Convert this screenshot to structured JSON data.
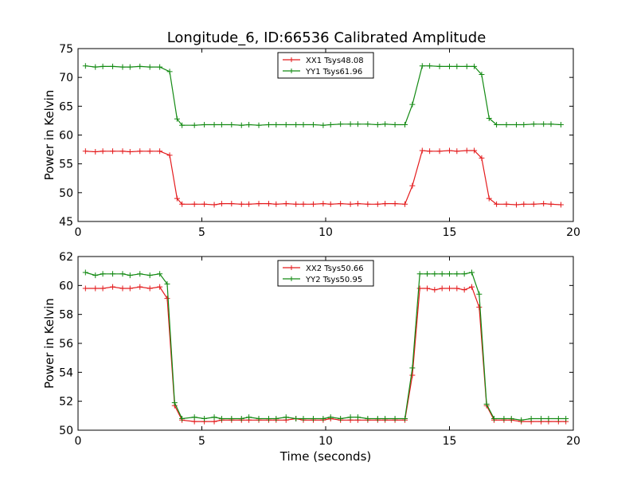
{
  "title": "Longitude_6, ID:66536 Calibrated Amplitude",
  "colors": {
    "red": "#e41a1c",
    "green": "#138a13"
  },
  "chart_data": [
    {
      "type": "line",
      "ylabel": "Power in Kelvin",
      "xlabel": "",
      "xlim": [
        0,
        20
      ],
      "ylim": [
        45,
        75
      ],
      "xticks": [
        0,
        5,
        10,
        15,
        20
      ],
      "yticks": [
        45,
        50,
        55,
        60,
        65,
        70,
        75
      ],
      "grid": false,
      "legend_position": "top-center",
      "x": [
        0.3,
        0.7,
        1.0,
        1.4,
        1.8,
        2.1,
        2.5,
        2.9,
        3.3,
        3.7,
        4.0,
        4.2,
        4.7,
        5.1,
        5.5,
        5.8,
        6.2,
        6.6,
        6.9,
        7.3,
        7.7,
        8.0,
        8.4,
        8.8,
        9.1,
        9.5,
        9.9,
        10.2,
        10.6,
        11.0,
        11.3,
        11.7,
        12.1,
        12.4,
        12.8,
        13.2,
        13.5,
        13.9,
        14.2,
        14.6,
        15.0,
        15.3,
        15.7,
        16.0,
        16.3,
        16.6,
        16.9,
        17.3,
        17.7,
        18.0,
        18.4,
        18.8,
        19.1,
        19.5
      ],
      "series": [
        {
          "name": "XX1 Tsys48.08",
          "color": "#e41a1c",
          "values": [
            57.2,
            57.1,
            57.2,
            57.2,
            57.2,
            57.1,
            57.2,
            57.2,
            57.2,
            56.5,
            49.0,
            48.0,
            48.0,
            48.0,
            47.9,
            48.1,
            48.1,
            48.0,
            48.0,
            48.1,
            48.1,
            48.0,
            48.1,
            48.0,
            48.0,
            48.0,
            48.1,
            48.0,
            48.1,
            48.0,
            48.1,
            48.0,
            48.0,
            48.1,
            48.1,
            48.0,
            51.2,
            57.3,
            57.2,
            57.2,
            57.3,
            57.2,
            57.3,
            57.3,
            56.0,
            49.0,
            48.0,
            48.0,
            47.9,
            48.0,
            48.0,
            48.1,
            48.0,
            47.9
          ]
        },
        {
          "name": "YY1 Tsys61.96",
          "color": "#138a13",
          "values": [
            72.0,
            71.8,
            71.9,
            71.9,
            71.8,
            71.8,
            71.9,
            71.8,
            71.8,
            71.0,
            62.8,
            61.7,
            61.7,
            61.8,
            61.8,
            61.8,
            61.8,
            61.7,
            61.8,
            61.7,
            61.8,
            61.8,
            61.8,
            61.8,
            61.8,
            61.8,
            61.7,
            61.8,
            61.9,
            61.9,
            61.9,
            61.9,
            61.8,
            61.9,
            61.8,
            61.8,
            65.3,
            72.0,
            72.0,
            71.9,
            71.9,
            71.9,
            71.9,
            71.9,
            70.5,
            62.9,
            61.8,
            61.8,
            61.8,
            61.8,
            61.9,
            61.9,
            61.9,
            61.8
          ]
        }
      ]
    },
    {
      "type": "line",
      "ylabel": "Power in Kelvin",
      "xlabel": "Time (seconds)",
      "xlim": [
        0,
        20
      ],
      "ylim": [
        50,
        62
      ],
      "xticks": [
        0,
        5,
        10,
        15,
        20
      ],
      "yticks": [
        50,
        52,
        54,
        56,
        58,
        60,
        62
      ],
      "grid": false,
      "legend_position": "top-center",
      "x": [
        0.3,
        0.7,
        1.0,
        1.4,
        1.8,
        2.1,
        2.5,
        2.9,
        3.3,
        3.6,
        3.9,
        4.2,
        4.7,
        5.1,
        5.5,
        5.8,
        6.2,
        6.6,
        6.9,
        7.3,
        7.7,
        8.0,
        8.4,
        8.8,
        9.1,
        9.5,
        9.9,
        10.2,
        10.6,
        11.0,
        11.3,
        11.7,
        12.1,
        12.4,
        12.8,
        13.2,
        13.5,
        13.8,
        14.1,
        14.4,
        14.7,
        15.0,
        15.3,
        15.6,
        15.9,
        16.2,
        16.5,
        16.8,
        17.2,
        17.5,
        17.9,
        18.3,
        18.7,
        19.0,
        19.4,
        19.7
      ],
      "series": [
        {
          "name": "XX2 Tsys50.66",
          "color": "#e41a1c",
          "values": [
            59.8,
            59.8,
            59.8,
            59.9,
            59.8,
            59.8,
            59.9,
            59.8,
            59.9,
            59.1,
            51.7,
            50.7,
            50.6,
            50.6,
            50.6,
            50.7,
            50.7,
            50.7,
            50.7,
            50.7,
            50.7,
            50.7,
            50.7,
            50.8,
            50.7,
            50.7,
            50.7,
            50.8,
            50.7,
            50.7,
            50.7,
            50.7,
            50.7,
            50.7,
            50.7,
            50.7,
            53.8,
            59.8,
            59.8,
            59.7,
            59.8,
            59.8,
            59.8,
            59.7,
            59.9,
            58.5,
            51.7,
            50.7,
            50.7,
            50.7,
            50.6,
            50.6,
            50.6,
            50.6,
            50.6,
            50.6
          ]
        },
        {
          "name": "YY2 Tsys50.95",
          "color": "#138a13",
          "values": [
            60.9,
            60.7,
            60.8,
            60.8,
            60.8,
            60.7,
            60.8,
            60.7,
            60.8,
            60.1,
            51.9,
            50.8,
            50.9,
            50.8,
            50.9,
            50.8,
            50.8,
            50.8,
            50.9,
            50.8,
            50.8,
            50.8,
            50.9,
            50.8,
            50.8,
            50.8,
            50.8,
            50.9,
            50.8,
            50.9,
            50.9,
            50.8,
            50.8,
            50.8,
            50.8,
            50.8,
            54.3,
            60.8,
            60.8,
            60.8,
            60.8,
            60.8,
            60.8,
            60.8,
            60.9,
            59.4,
            51.8,
            50.8,
            50.8,
            50.8,
            50.7,
            50.8,
            50.8,
            50.8,
            50.8,
            50.8
          ]
        }
      ]
    }
  ]
}
